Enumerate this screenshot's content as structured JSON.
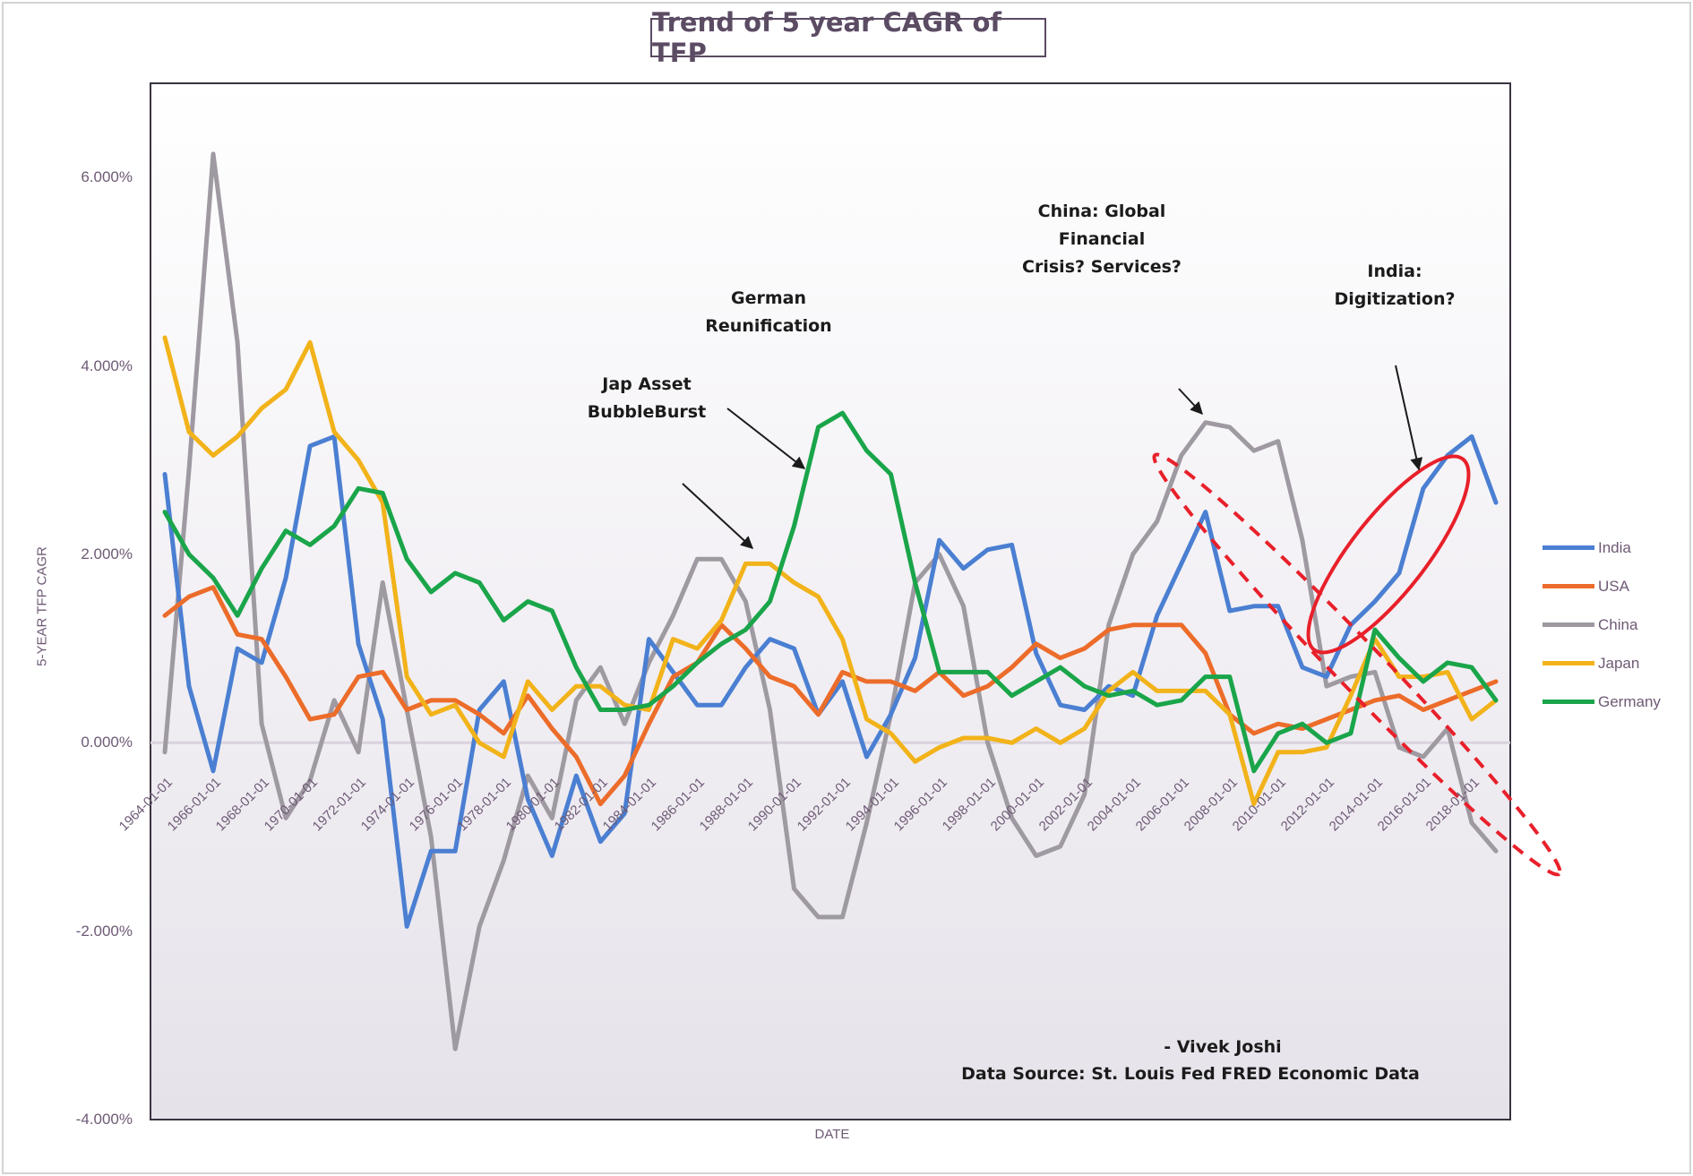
{
  "chart_data": {
    "type": "line",
    "title": "Trend of 5 year CAGR of TFP",
    "xlabel": "DATE",
    "ylabel": "5-YEAR TFP CAGR",
    "ylim": [
      -4.0,
      7.0
    ],
    "yticks": [
      -4.0,
      -2.0,
      0.0,
      2.0,
      4.0,
      6.0
    ],
    "ytick_labels": [
      "-4.000%",
      "-2.000%",
      "0.000%",
      "2.000%",
      "4.000%",
      "6.000%"
    ],
    "x": [
      1964,
      1965,
      1966,
      1967,
      1968,
      1969,
      1970,
      1971,
      1972,
      1973,
      1974,
      1975,
      1976,
      1977,
      1978,
      1979,
      1980,
      1981,
      1982,
      1983,
      1984,
      1985,
      1986,
      1987,
      1988,
      1989,
      1990,
      1991,
      1992,
      1993,
      1994,
      1995,
      1996,
      1997,
      1998,
      1999,
      2000,
      2001,
      2002,
      2003,
      2004,
      2005,
      2006,
      2007,
      2008,
      2009,
      2010,
      2011,
      2012,
      2013,
      2014,
      2015,
      2016,
      2017,
      2018,
      2019
    ],
    "xtick_labels": [
      "1964-01-01",
      "1966-01-01",
      "1968-01-01",
      "1970-01-01",
      "1972-01-01",
      "1974-01-01",
      "1976-01-01",
      "1978-01-01",
      "1980-01-01",
      "1982-01-01",
      "1984-01-01",
      "1986-01-01",
      "1988-01-01",
      "1990-01-01",
      "1992-01-01",
      "1994-01-01",
      "1996-01-01",
      "1998-01-01",
      "2000-01-01",
      "2002-01-01",
      "2004-01-01",
      "2006-01-01",
      "2008-01-01",
      "2010-01-01",
      "2012-01-01",
      "2014-01-01",
      "2016-01-01",
      "2018-01-01"
    ],
    "series": [
      {
        "name": "India",
        "color": "#4a7fd2",
        "values": [
          2.85,
          0.6,
          -0.3,
          1.0,
          0.85,
          1.75,
          3.15,
          3.25,
          1.05,
          0.25,
          -1.95,
          -1.15,
          -1.15,
          0.35,
          0.65,
          -0.6,
          -1.2,
          -0.35,
          -1.05,
          -0.75,
          1.1,
          0.75,
          0.4,
          0.4,
          0.8,
          1.1,
          1.0,
          0.3,
          0.65,
          -0.15,
          0.3,
          0.9,
          2.15,
          1.85,
          2.05,
          2.1,
          0.95,
          0.4,
          0.35,
          0.6,
          0.5,
          1.35,
          1.9,
          2.45,
          1.4,
          1.45,
          1.45,
          0.8,
          0.7,
          1.25,
          1.5,
          1.8,
          2.7,
          3.05,
          3.25,
          2.55
        ]
      },
      {
        "name": "USA",
        "color": "#ec6c2a",
        "values": [
          1.35,
          1.55,
          1.65,
          1.15,
          1.1,
          0.7,
          0.25,
          0.3,
          0.7,
          0.75,
          0.35,
          0.45,
          0.45,
          0.3,
          0.1,
          0.5,
          0.15,
          -0.15,
          -0.65,
          -0.35,
          0.2,
          0.7,
          0.85,
          1.25,
          1.0,
          0.7,
          0.6,
          0.3,
          0.75,
          0.65,
          0.65,
          0.55,
          0.75,
          0.5,
          0.6,
          0.8,
          1.05,
          0.9,
          1.0,
          1.2,
          1.25,
          1.25,
          1.25,
          0.95,
          0.3,
          0.1,
          0.2,
          0.15,
          0.25,
          0.35,
          0.45,
          0.5,
          0.35,
          0.45,
          0.55,
          0.65
        ]
      },
      {
        "name": "China",
        "color": "#9f99a1",
        "values": [
          -0.1,
          2.9,
          6.25,
          4.25,
          0.2,
          -0.8,
          -0.4,
          0.45,
          -0.1,
          1.7,
          0.35,
          -1.0,
          -3.25,
          -1.95,
          -1.25,
          -0.35,
          -0.8,
          0.45,
          0.8,
          0.2,
          0.85,
          1.35,
          1.95,
          1.95,
          1.5,
          0.35,
          -1.55,
          -1.85,
          -1.85,
          -0.85,
          0.3,
          1.7,
          2.0,
          1.45,
          0.0,
          -0.8,
          -1.2,
          -1.1,
          -0.55,
          1.25,
          2.0,
          2.35,
          3.05,
          3.4,
          3.35,
          3.1,
          3.2,
          2.15,
          0.6,
          0.7,
          0.75,
          -0.05,
          -0.15,
          0.15,
          -0.85,
          -1.15
        ]
      },
      {
        "name": "Japan",
        "color": "#f2b31a",
        "values": [
          4.3,
          3.3,
          3.05,
          3.25,
          3.55,
          3.75,
          4.25,
          3.3,
          3.0,
          2.55,
          0.7,
          0.3,
          0.4,
          0.0,
          -0.15,
          0.65,
          0.35,
          0.6,
          0.6,
          0.4,
          0.35,
          1.1,
          1.0,
          1.3,
          1.9,
          1.9,
          1.7,
          1.55,
          1.1,
          0.25,
          0.1,
          -0.2,
          -0.05,
          0.05,
          0.05,
          0.0,
          0.15,
          0.0,
          0.15,
          0.55,
          0.75,
          0.55,
          0.55,
          0.55,
          0.3,
          -0.65,
          -0.1,
          -0.1,
          -0.05,
          0.5,
          1.1,
          0.7,
          0.7,
          0.75,
          0.25,
          0.45
        ]
      },
      {
        "name": "Germany",
        "color": "#1aa54a",
        "values": [
          2.45,
          2.0,
          1.75,
          1.35,
          1.85,
          2.25,
          2.1,
          2.3,
          2.7,
          2.65,
          1.95,
          1.6,
          1.8,
          1.7,
          1.3,
          1.5,
          1.4,
          0.8,
          0.35,
          0.35,
          0.4,
          0.6,
          0.85,
          1.05,
          1.2,
          1.5,
          2.3,
          3.35,
          3.5,
          3.1,
          2.85,
          1.7,
          0.75,
          0.75,
          0.75,
          0.5,
          0.65,
          0.8,
          0.6,
          0.5,
          0.55,
          0.4,
          0.45,
          0.7,
          0.7,
          -0.3,
          0.1,
          0.2,
          0.0,
          0.1,
          1.2,
          0.9,
          0.65,
          0.85,
          0.8,
          0.45
        ]
      }
    ],
    "annotations": [
      {
        "text": [
          "Jap Asset",
          "BubbleBurst"
        ]
      },
      {
        "text": [
          "German",
          "Reunification"
        ]
      },
      {
        "text": [
          "China: Global",
          "Financial",
          "Crisis? Services?"
        ]
      },
      {
        "text": [
          "India:",
          "Digitization?"
        ]
      }
    ],
    "credit": [
      "- Vivek Joshi",
      "Data Source: St. Louis Fed FRED Economic Data"
    ],
    "legend_position": "right",
    "grid": false,
    "highlight_color": "#e8202a"
  }
}
